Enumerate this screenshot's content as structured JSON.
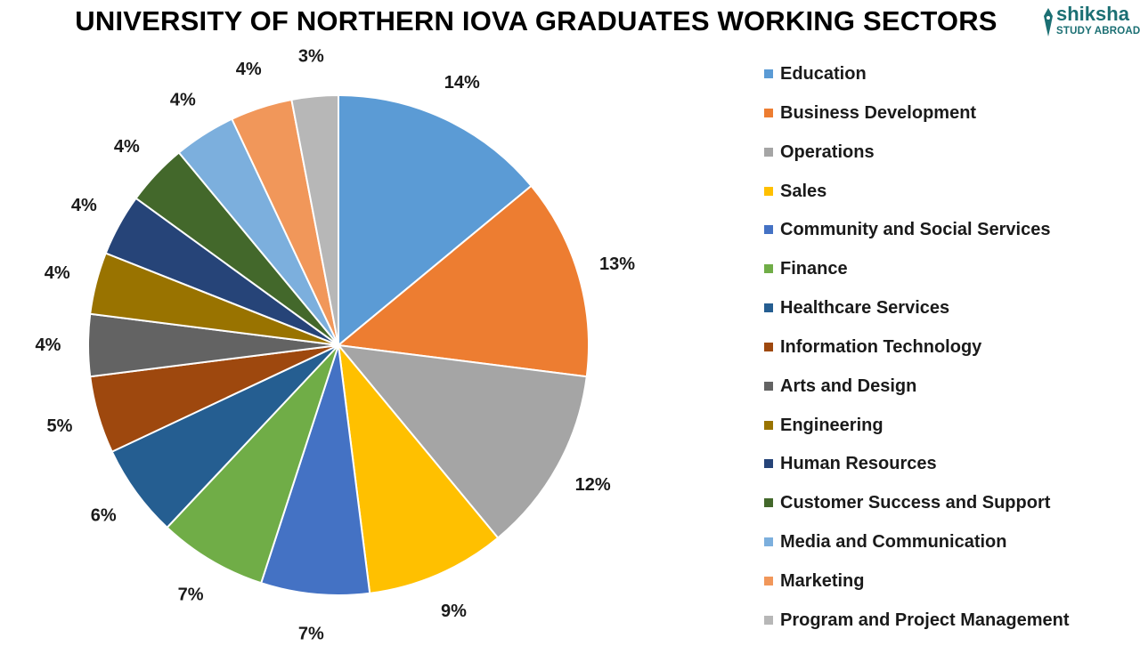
{
  "chart_data": {
    "type": "pie",
    "title": "UNIVERSITY OF NORTHERN IOVA GRADUATES WORKING SECTORS",
    "legend_position": "right",
    "start_angle": "top, clockwise",
    "slices": [
      {
        "name": "Education",
        "value": 14,
        "label": "14%",
        "color": "#5b9bd5"
      },
      {
        "name": "Business Development",
        "value": 13,
        "label": "13%",
        "color": "#ed7d31"
      },
      {
        "name": "Operations",
        "value": 12,
        "label": "12%",
        "color": "#a5a5a5"
      },
      {
        "name": "Sales",
        "value": 9,
        "label": "9%",
        "color": "#ffc000"
      },
      {
        "name": "Community and Social Services",
        "value": 7,
        "label": "7%",
        "color": "#4472c4"
      },
      {
        "name": "Finance",
        "value": 7,
        "label": "7%",
        "color": "#70ad47"
      },
      {
        "name": "Healthcare Services",
        "value": 6,
        "label": "6%",
        "color": "#255e91"
      },
      {
        "name": "Information Technology",
        "value": 5,
        "label": "5%",
        "color": "#9e480e"
      },
      {
        "name": "Arts and Design",
        "value": 4,
        "label": "4%",
        "color": "#636363"
      },
      {
        "name": "Engineering",
        "value": 4,
        "label": "4%",
        "color": "#997300"
      },
      {
        "name": "Human Resources",
        "value": 4,
        "label": "4%",
        "color": "#264478"
      },
      {
        "name": "Customer Success and Support",
        "value": 4,
        "label": "4%",
        "color": "#43682b"
      },
      {
        "name": "Media and Communication",
        "value": 4,
        "label": "4%",
        "color": "#7cafdd"
      },
      {
        "name": "Marketing",
        "value": 4,
        "label": "4%",
        "color": "#f1975a"
      },
      {
        "name": "Program and Project Management",
        "value": 3,
        "label": "3%",
        "color": "#b7b7b7"
      }
    ]
  },
  "logo": {
    "word": "shiksha",
    "sub": "STUDY ABROAD",
    "color": "#1b6f73"
  }
}
